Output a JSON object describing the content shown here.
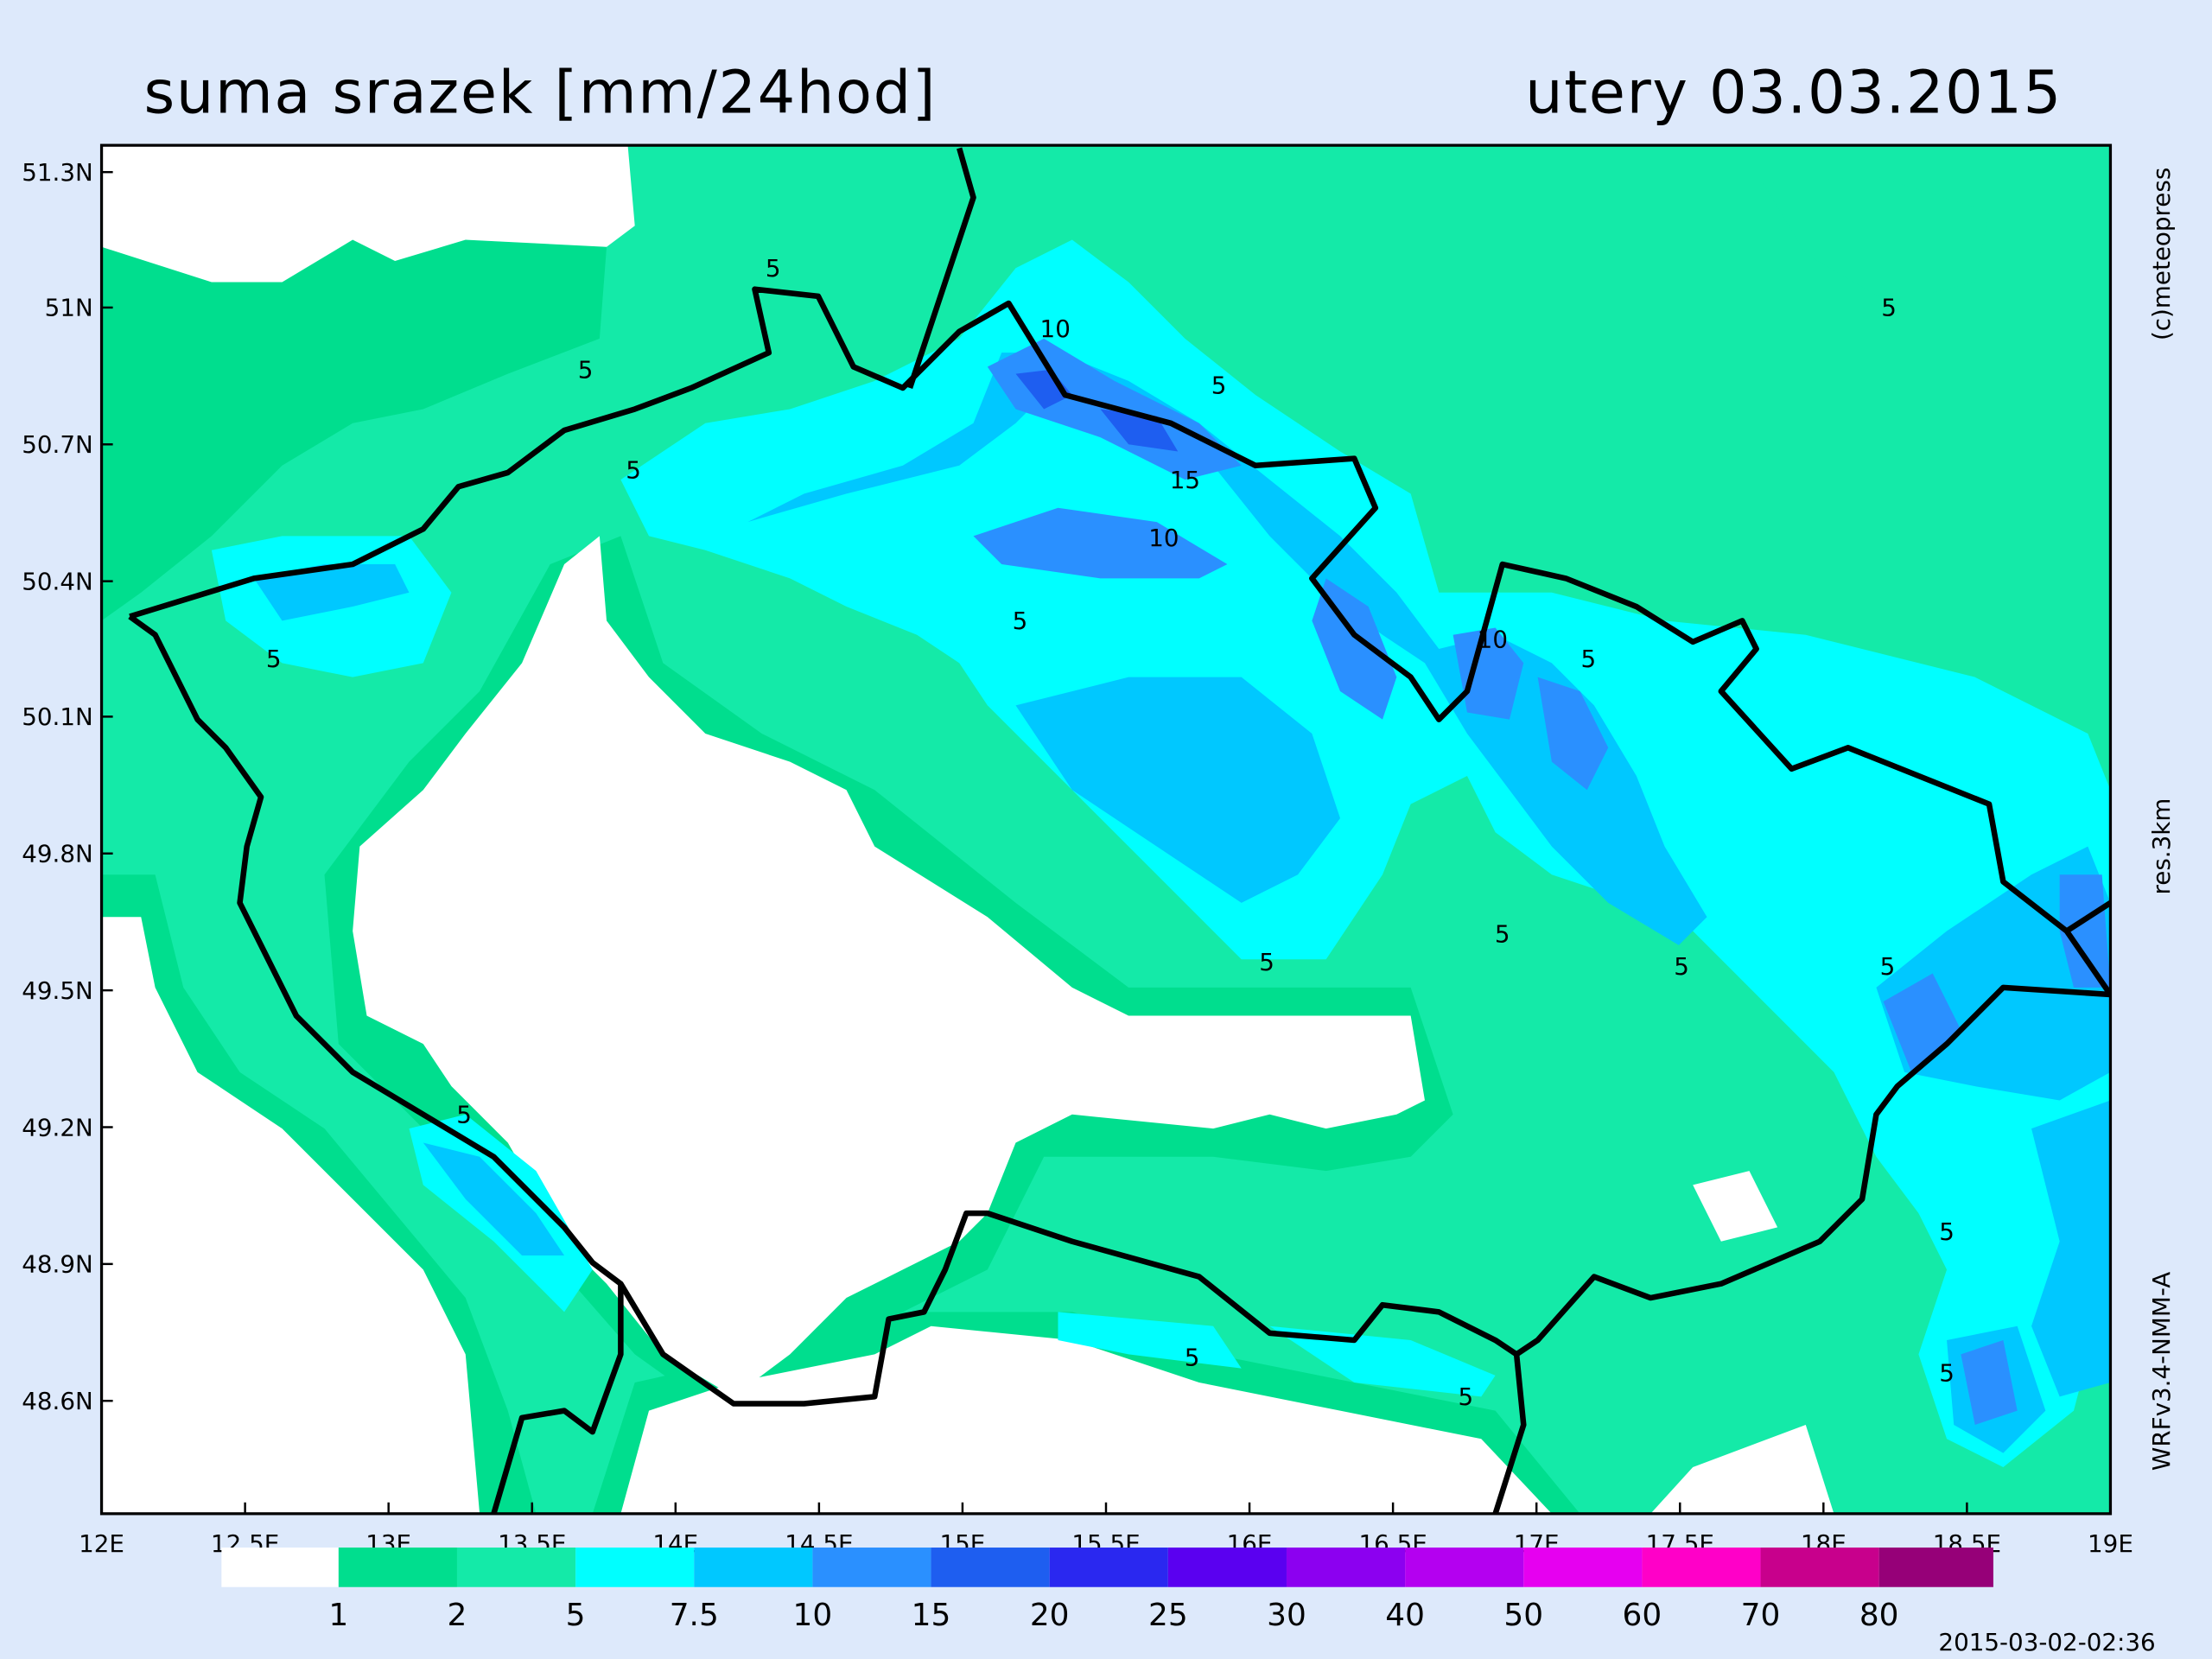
{
  "header": {
    "title": "suma srazek [mm/24hod]",
    "date": "utery 03.03.2015"
  },
  "map": {
    "lat_labels": [
      "51.3N",
      "51N",
      "50.7N",
      "50.4N",
      "50.1N",
      "49.8N",
      "49.5N",
      "49.2N",
      "48.9N",
      "48.6N"
    ],
    "lon_labels": [
      "12E",
      "12.5E",
      "13E",
      "13.5E",
      "14E",
      "14.5E",
      "15E",
      "15.5E",
      "16E",
      "16.5E",
      "17E",
      "17.5E",
      "18E",
      "18.5E",
      "19E"
    ],
    "contour_labels": [
      "5",
      "5",
      "5",
      "5",
      "10",
      "5",
      "15",
      "10",
      "5",
      "10",
      "5",
      "5",
      "5",
      "5",
      "5",
      "5",
      "5",
      "5",
      "5",
      "5",
      "5"
    ]
  },
  "colorbar": {
    "labels": [
      "1",
      "2",
      "5",
      "7.5",
      "10",
      "15",
      "20",
      "25",
      "30",
      "40",
      "50",
      "60",
      "70",
      "80"
    ],
    "colors": [
      "#ffffff",
      "#00de8e",
      "#14eaa8",
      "#00ffff",
      "#00c8ff",
      "#2a90ff",
      "#1e5ef0",
      "#2a28f0",
      "#5a00f0",
      "#8c00f0",
      "#b400f0",
      "#e600f0",
      "#ff00c8",
      "#c8008c",
      "#960078"
    ]
  },
  "side_text": [
    "(c)meteopress",
    "res.3km",
    "WRFv3.4-NMM-A"
  ],
  "timestamp": "2015-03-02-02:36"
}
